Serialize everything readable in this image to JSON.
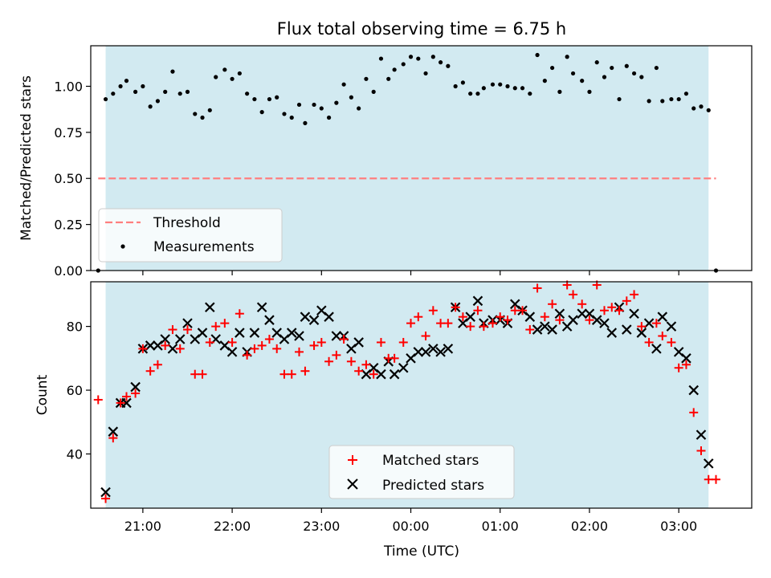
{
  "figure": {
    "title": "Flux total observing time = 6.75 h"
  },
  "colors": {
    "shade": "#add8e6",
    "threshold": "#ff7f7f",
    "measurements": "#000000",
    "matched": "#ff0000",
    "predicted": "#000000"
  },
  "chart_data": [
    {
      "type": "scatter",
      "title": "Flux total observing time = 6.75 h",
      "xlabel": "",
      "ylabel": "Matched/Predicted stars",
      "ylim": [
        0,
        1.22
      ],
      "yticks": [
        "0.00",
        "0.25",
        "0.50",
        "0.75",
        "1.00"
      ],
      "xlim": [
        "20:25",
        "03:49"
      ],
      "shaded_span": [
        "20:35",
        "03:20"
      ],
      "legend": {
        "placement": "lower-left",
        "entries": [
          "Threshold",
          "Measurements"
        ]
      },
      "series": [
        {
          "name": "Threshold",
          "kind": "dashed-line",
          "x": [
            "20:30",
            "03:25"
          ],
          "y": [
            0.5,
            0.5
          ]
        },
        {
          "name": "Measurements",
          "kind": "dots",
          "points": [
            [
              "20:30",
              0.0
            ],
            [
              "20:35",
              0.93
            ],
            [
              "20:40",
              0.96
            ],
            [
              "20:45",
              1.0
            ],
            [
              "20:49",
              1.03
            ],
            [
              "20:55",
              0.97
            ],
            [
              "21:00",
              1.0
            ],
            [
              "21:05",
              0.89
            ],
            [
              "21:10",
              0.92
            ],
            [
              "21:15",
              0.97
            ],
            [
              "21:20",
              1.08
            ],
            [
              "21:25",
              0.96
            ],
            [
              "21:30",
              0.97
            ],
            [
              "21:35",
              0.85
            ],
            [
              "21:40",
              0.83
            ],
            [
              "21:45",
              0.87
            ],
            [
              "21:49",
              1.05
            ],
            [
              "21:55",
              1.09
            ],
            [
              "22:00",
              1.04
            ],
            [
              "22:05",
              1.07
            ],
            [
              "22:10",
              0.96
            ],
            [
              "22:15",
              0.93
            ],
            [
              "22:20",
              0.86
            ],
            [
              "22:25",
              0.93
            ],
            [
              "22:30",
              0.94
            ],
            [
              "22:35",
              0.85
            ],
            [
              "22:40",
              0.83
            ],
            [
              "22:45",
              0.9
            ],
            [
              "22:49",
              0.8
            ],
            [
              "22:55",
              0.9
            ],
            [
              "23:00",
              0.88
            ],
            [
              "23:05",
              0.83
            ],
            [
              "23:10",
              0.91
            ],
            [
              "23:15",
              1.01
            ],
            [
              "23:20",
              0.94
            ],
            [
              "23:25",
              0.88
            ],
            [
              "23:30",
              1.04
            ],
            [
              "23:35",
              0.97
            ],
            [
              "23:40",
              1.15
            ],
            [
              "23:45",
              1.04
            ],
            [
              "23:49",
              1.09
            ],
            [
              "23:55",
              1.12
            ],
            [
              "00:00",
              1.16
            ],
            [
              "00:05",
              1.15
            ],
            [
              "00:10",
              1.07
            ],
            [
              "00:15",
              1.16
            ],
            [
              "00:20",
              1.13
            ],
            [
              "00:25",
              1.11
            ],
            [
              "00:30",
              1.0
            ],
            [
              "00:35",
              1.02
            ],
            [
              "00:40",
              0.96
            ],
            [
              "00:45",
              0.96
            ],
            [
              "00:49",
              0.99
            ],
            [
              "00:55",
              1.01
            ],
            [
              "01:00",
              1.01
            ],
            [
              "01:05",
              1.0
            ],
            [
              "01:10",
              0.99
            ],
            [
              "01:15",
              0.99
            ],
            [
              "01:20",
              0.96
            ],
            [
              "01:25",
              1.17
            ],
            [
              "01:30",
              1.03
            ],
            [
              "01:35",
              1.1
            ],
            [
              "01:40",
              0.97
            ],
            [
              "01:45",
              1.16
            ],
            [
              "01:49",
              1.07
            ],
            [
              "01:55",
              1.03
            ],
            [
              "02:00",
              0.97
            ],
            [
              "02:05",
              1.13
            ],
            [
              "02:10",
              1.05
            ],
            [
              "02:15",
              1.1
            ],
            [
              "02:20",
              0.93
            ],
            [
              "02:25",
              1.11
            ],
            [
              "02:30",
              1.07
            ],
            [
              "02:35",
              1.05
            ],
            [
              "02:40",
              0.92
            ],
            [
              "02:45",
              1.1
            ],
            [
              "02:49",
              0.92
            ],
            [
              "02:55",
              0.93
            ],
            [
              "03:00",
              0.93
            ],
            [
              "03:05",
              0.96
            ],
            [
              "03:10",
              0.88
            ],
            [
              "03:15",
              0.89
            ],
            [
              "03:20",
              0.87
            ],
            [
              "03:25",
              0.0
            ]
          ]
        }
      ]
    },
    {
      "type": "scatter",
      "title": "",
      "xlabel": "Time (UTC)",
      "ylabel": "Count",
      "ylim": [
        23,
        94
      ],
      "yticks": [
        "40",
        "60",
        "80"
      ],
      "xticks": [
        "21:00",
        "22:00",
        "23:00",
        "00:00",
        "01:00",
        "02:00",
        "03:00"
      ],
      "xlim": [
        "20:25",
        "03:49"
      ],
      "shaded_span": [
        "20:35",
        "03:20"
      ],
      "legend": {
        "placement": "lower-center",
        "entries": [
          "Matched stars",
          "Predicted stars"
        ]
      },
      "series": [
        {
          "name": "Matched stars",
          "marker": "plus",
          "points": [
            [
              "20:30",
              57
            ],
            [
              "20:35",
              26
            ],
            [
              "20:40",
              45
            ],
            [
              "20:45",
              56
            ],
            [
              "20:49",
              58
            ],
            [
              "20:55",
              59
            ],
            [
              "21:00",
              73
            ],
            [
              "21:05",
              66
            ],
            [
              "21:10",
              68
            ],
            [
              "21:15",
              74
            ],
            [
              "21:20",
              79
            ],
            [
              "21:25",
              73
            ],
            [
              "21:30",
              79
            ],
            [
              "21:35",
              65
            ],
            [
              "21:40",
              65
            ],
            [
              "21:45",
              75
            ],
            [
              "21:49",
              80
            ],
            [
              "21:55",
              81
            ],
            [
              "22:00",
              75
            ],
            [
              "22:05",
              84
            ],
            [
              "22:10",
              71
            ],
            [
              "22:15",
              73
            ],
            [
              "22:20",
              74
            ],
            [
              "22:25",
              76
            ],
            [
              "22:30",
              73
            ],
            [
              "22:35",
              65
            ],
            [
              "22:40",
              65
            ],
            [
              "22:45",
              72
            ],
            [
              "22:49",
              66
            ],
            [
              "22:55",
              74
            ],
            [
              "23:00",
              75
            ],
            [
              "23:05",
              69
            ],
            [
              "23:10",
              71
            ],
            [
              "23:15",
              76
            ],
            [
              "23:20",
              69
            ],
            [
              "23:25",
              66
            ],
            [
              "23:30",
              68
            ],
            [
              "23:35",
              65
            ],
            [
              "23:40",
              75
            ],
            [
              "23:45",
              70
            ],
            [
              "23:49",
              70
            ],
            [
              "23:55",
              75
            ],
            [
              "00:00",
              81
            ],
            [
              "00:05",
              83
            ],
            [
              "00:10",
              77
            ],
            [
              "00:15",
              85
            ],
            [
              "00:20",
              81
            ],
            [
              "00:25",
              81
            ],
            [
              "00:30",
              86
            ],
            [
              "00:35",
              83
            ],
            [
              "00:40",
              80
            ],
            [
              "00:45",
              85
            ],
            [
              "00:49",
              80
            ],
            [
              "00:55",
              81
            ],
            [
              "01:00",
              83
            ],
            [
              "01:05",
              82
            ],
            [
              "01:10",
              85
            ],
            [
              "01:15",
              85
            ],
            [
              "01:20",
              79
            ],
            [
              "01:25",
              92
            ],
            [
              "01:30",
              83
            ],
            [
              "01:35",
              87
            ],
            [
              "01:40",
              82
            ],
            [
              "01:45",
              93
            ],
            [
              "01:49",
              90
            ],
            [
              "01:55",
              87
            ],
            [
              "02:00",
              82
            ],
            [
              "02:05",
              93
            ],
            [
              "02:10",
              85
            ],
            [
              "02:15",
              86
            ],
            [
              "02:20",
              85
            ],
            [
              "02:25",
              88
            ],
            [
              "02:30",
              90
            ],
            [
              "02:35",
              80
            ],
            [
              "02:40",
              75
            ],
            [
              "02:45",
              81
            ],
            [
              "02:49",
              77
            ],
            [
              "02:55",
              75
            ],
            [
              "03:00",
              67
            ],
            [
              "03:05",
              68
            ],
            [
              "03:10",
              53
            ],
            [
              "03:15",
              41
            ],
            [
              "03:20",
              32
            ],
            [
              "03:25",
              32
            ]
          ]
        },
        {
          "name": "Predicted stars",
          "marker": "x",
          "points": [
            [
              "20:35",
              28
            ],
            [
              "20:40",
              47
            ],
            [
              "20:45",
              56
            ],
            [
              "20:49",
              56
            ],
            [
              "20:55",
              61
            ],
            [
              "21:00",
              73
            ],
            [
              "21:05",
              74
            ],
            [
              "21:10",
              74
            ],
            [
              "21:15",
              76
            ],
            [
              "21:20",
              73
            ],
            [
              "21:25",
              76
            ],
            [
              "21:30",
              81
            ],
            [
              "21:35",
              76
            ],
            [
              "21:40",
              78
            ],
            [
              "21:45",
              86
            ],
            [
              "21:49",
              76
            ],
            [
              "21:55",
              74
            ],
            [
              "22:00",
              72
            ],
            [
              "22:05",
              78
            ],
            [
              "22:10",
              72
            ],
            [
              "22:15",
              78
            ],
            [
              "22:20",
              86
            ],
            [
              "22:25",
              82
            ],
            [
              "22:30",
              78
            ],
            [
              "22:35",
              76
            ],
            [
              "22:40",
              78
            ],
            [
              "22:45",
              77
            ],
            [
              "22:49",
              83
            ],
            [
              "22:55",
              82
            ],
            [
              "23:00",
              85
            ],
            [
              "23:05",
              83
            ],
            [
              "23:10",
              77
            ],
            [
              "23:15",
              77
            ],
            [
              "23:20",
              73
            ],
            [
              "23:25",
              75
            ],
            [
              "23:30",
              65
            ],
            [
              "23:35",
              67
            ],
            [
              "23:40",
              65
            ],
            [
              "23:45",
              69
            ],
            [
              "23:49",
              65
            ],
            [
              "23:55",
              67
            ],
            [
              "00:00",
              70
            ],
            [
              "00:05",
              72
            ],
            [
              "00:10",
              72
            ],
            [
              "00:15",
              73
            ],
            [
              "00:20",
              72
            ],
            [
              "00:25",
              73
            ],
            [
              "00:30",
              86
            ],
            [
              "00:35",
              81
            ],
            [
              "00:40",
              83
            ],
            [
              "00:45",
              88
            ],
            [
              "00:49",
              81
            ],
            [
              "00:55",
              82
            ],
            [
              "01:00",
              82
            ],
            [
              "01:05",
              81
            ],
            [
              "01:10",
              87
            ],
            [
              "01:15",
              85
            ],
            [
              "01:20",
              83
            ],
            [
              "01:25",
              79
            ],
            [
              "01:30",
              80
            ],
            [
              "01:35",
              79
            ],
            [
              "01:40",
              84
            ],
            [
              "01:45",
              80
            ],
            [
              "01:49",
              82
            ],
            [
              "01:55",
              84
            ],
            [
              "02:00",
              84
            ],
            [
              "02:05",
              82
            ],
            [
              "02:10",
              81
            ],
            [
              "02:15",
              78
            ],
            [
              "02:20",
              86
            ],
            [
              "02:25",
              79
            ],
            [
              "02:30",
              84
            ],
            [
              "02:35",
              78
            ],
            [
              "02:40",
              81
            ],
            [
              "02:45",
              73
            ],
            [
              "02:49",
              83
            ],
            [
              "02:55",
              80
            ],
            [
              "03:00",
              72
            ],
            [
              "03:05",
              70
            ],
            [
              "03:10",
              60
            ],
            [
              "03:15",
              46
            ],
            [
              "03:20",
              37
            ]
          ]
        }
      ]
    }
  ]
}
